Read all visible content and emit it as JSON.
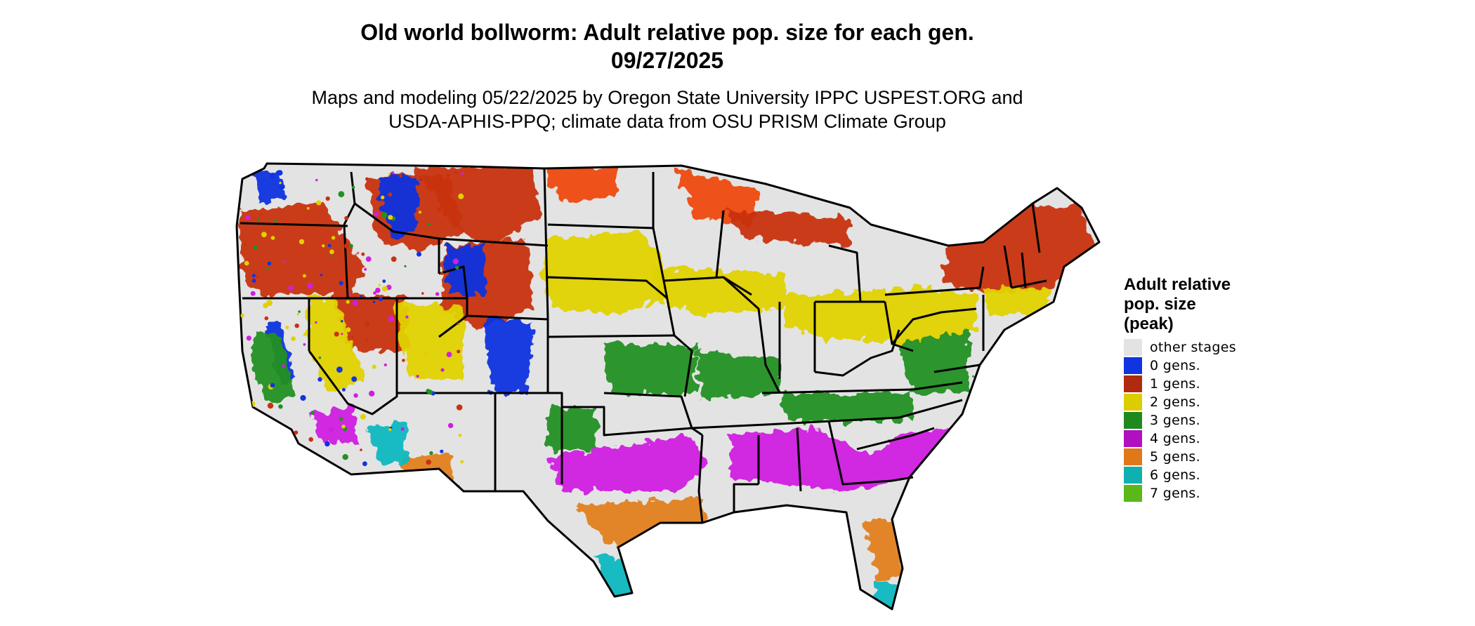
{
  "header": {
    "title_line1": "Old world bollworm: Adult relative pop. size for each gen.",
    "title_line2": "09/27/2025",
    "subtitle_line1": "Maps and modeling 05/22/2025 by Oregon State University IPPC USPEST.ORG and",
    "subtitle_line2": "USDA-APHIS-PPQ; climate data from OSU PRISM Climate Group"
  },
  "legend": {
    "title_line1": "Adult relative",
    "title_line2": "pop. size",
    "title_line3": "(peak)",
    "items": [
      {
        "label": "other stages",
        "color": "#e3e3e3"
      },
      {
        "label": "0 gens.",
        "color": "#1034e0"
      },
      {
        "label": "1 gens.",
        "color": "#b02a10"
      },
      {
        "label": "2 gens.",
        "color": "#dccd00"
      },
      {
        "label": "3 gens.",
        "color": "#1e8a1e"
      },
      {
        "label": "4 gens.",
        "color": "#b010c0"
      },
      {
        "label": "5 gens.",
        "color": "#e07818"
      },
      {
        "label": "6 gens.",
        "color": "#10b0b0"
      },
      {
        "label": "7 gens.",
        "color": "#5ab818"
      }
    ]
  },
  "map_colors": {
    "land": "#e3e3e3",
    "gen0": "#1034e0",
    "gen1": "#c8320e",
    "gen1b": "#ee4a10",
    "gen2": "#e0d200",
    "gen3": "#229022",
    "gen4": "#d01ee0",
    "gen5": "#e28020",
    "gen6": "#10b8c0",
    "gen7": "#5ab818",
    "border": "#000000"
  }
}
